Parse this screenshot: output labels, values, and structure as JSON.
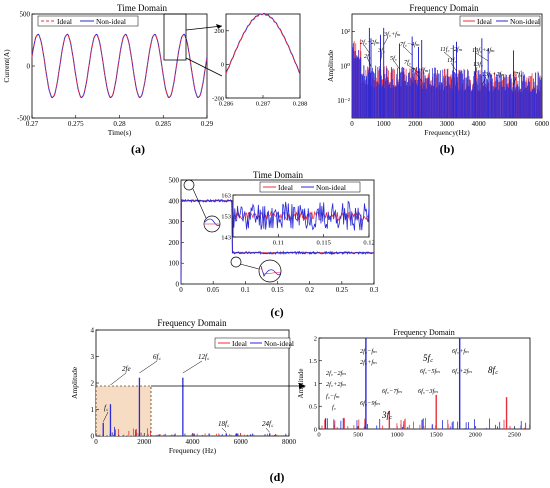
{
  "chart_data": [
    {
      "id": "a",
      "type": "line",
      "panel_label": "(a)",
      "title": "Time Domain",
      "xlabel": "Time(s)",
      "ylabel": "Current(A)",
      "xlim": [
        0.27,
        0.29
      ],
      "ylim": [
        -500,
        500
      ],
      "x_ticks": [
        0.27,
        0.275,
        0.28,
        0.285,
        0.29
      ],
      "x_tick_labels": [
        "0.27",
        "0.275",
        "0.28",
        "0.285",
        "0.29"
      ],
      "y_ticks": [
        -500,
        0,
        500
      ],
      "y_tick_labels": [
        "-500",
        "0",
        "500"
      ],
      "waveform": {
        "amplitude": 300,
        "frequency_hz": 300
      },
      "series": [
        {
          "name": "Ideal",
          "color": "#e8303a",
          "style": "dashed"
        },
        {
          "name": "Non-ideal",
          "color": "#2a2ad8",
          "style": "solid"
        }
      ],
      "legend": "top",
      "inset": {
        "xlim": [
          0.286,
          0.288
        ],
        "ylim": [
          -200,
          300
        ],
        "x_ticks": [
          0.286,
          0.287,
          0.288
        ],
        "x_tick_labels": [
          "0.286",
          "0.287",
          "0.288"
        ],
        "y_ticks": [
          -200,
          0,
          200
        ],
        "y_tick_labels": [
          "-200",
          "0",
          "200"
        ]
      }
    },
    {
      "id": "b",
      "type": "line",
      "panel_label": "(b)",
      "title": "Frequency Domain",
      "xlabel": "Frequency(Hz)",
      "ylabel": "Amplitude",
      "xlim": [
        0,
        6000
      ],
      "x_ticks": [
        0,
        1000,
        2000,
        3000,
        4000,
        5000,
        6000
      ],
      "x_tick_labels": [
        "0",
        "1000",
        "2000",
        "3000",
        "4000",
        "5000",
        "6000"
      ],
      "y_scale": "log",
      "y_ticks": [
        -2,
        0,
        2
      ],
      "y_tick_labels": [
        "10⁻²",
        "10⁰",
        "10²"
      ],
      "series": [
        {
          "name": "Ideal",
          "color": "#e8303a"
        },
        {
          "name": "Non-ideal",
          "color": "#2a2ad8"
        }
      ],
      "legend": "top-right",
      "annotations": [
        "2f꜀−2fₘ",
        "2f꜀",
        "3f꜀",
        "3f꜀+fₘ",
        "5f꜀",
        "7f꜀−4fₘ",
        "7f꜀",
        "7f꜀+fₘ",
        "11f꜀−2fₘ",
        "11f꜀",
        "13f꜀",
        "13f꜀+4fₘ",
        "13f꜀+2fₘ",
        "17f꜀"
      ],
      "peaks_hz": [
        550,
        600,
        900,
        1000,
        1500,
        1900,
        2100,
        2200,
        3200,
        3300,
        3900,
        4300,
        4100,
        5100
      ],
      "peak_log_amplitude": [
        2.2,
        1.6,
        1.8,
        2.2,
        1.3,
        1.7,
        1.1,
        1.5,
        1.2,
        1.4,
        1.1,
        1.0,
        1.6,
        0.9
      ]
    },
    {
      "id": "c",
      "type": "line",
      "panel_label": "(c)",
      "title": "Time Domain",
      "xlim": [
        0,
        0.3
      ],
      "ylim": [
        0,
        500
      ],
      "x_ticks": [
        0,
        0.05,
        0.1,
        0.15,
        0.2,
        0.25,
        0.3
      ],
      "x_tick_labels": [
        "0",
        "0.05",
        "0.1",
        "0.15",
        "0.2",
        "0.25",
        "0.3"
      ],
      "y_ticks": [
        0,
        100,
        200,
        300,
        400,
        500
      ],
      "y_tick_labels": [
        "0",
        "100",
        "200",
        "300",
        "400",
        "500"
      ],
      "step": {
        "t_step": 0.08,
        "level_before": 400,
        "level_after": 150
      },
      "series": [
        {
          "name": "Ideal",
          "color": "#e8303a"
        },
        {
          "name": "Non-ideal",
          "color": "#2a2ad8"
        }
      ],
      "legend": "top",
      "inset": {
        "xlim": [
          0.105,
          0.12
        ],
        "ylim": [
          143,
          163
        ],
        "x_ticks": [
          0.11,
          0.115,
          0.12
        ],
        "x_tick_labels": [
          "0.11",
          "0.115",
          "0.12"
        ],
        "y_ticks": [
          143,
          153,
          163
        ],
        "y_tick_labels": [
          "143",
          "153",
          "163"
        ]
      }
    },
    {
      "id": "d",
      "type": "bar",
      "panel_label": "(d)",
      "title": "Frequency Domain",
      "xlabel": "Frequency (Hz)",
      "ylabel": "Amplitude",
      "xlim": [
        0,
        8000
      ],
      "ylim": [
        0,
        4
      ],
      "x_ticks": [
        0,
        2000,
        4000,
        6000,
        8000
      ],
      "x_tick_labels": [
        "0",
        "2000",
        "4000",
        "6000",
        "8000"
      ],
      "y_ticks": [
        0,
        1,
        2,
        3,
        4
      ],
      "y_tick_labels": [
        "0",
        "1",
        "2",
        "3",
        "4"
      ],
      "series": [
        {
          "name": "Ideal",
          "color": "#e8303a"
        },
        {
          "name": "Non-ideal",
          "color": "#2a2ad8"
        }
      ],
      "legend": "top-right",
      "annotations": [
        "f꜀",
        "2fe",
        "6f꜀",
        "12f꜀",
        "18f꜀",
        "24f꜀"
      ],
      "peaks_hz": [
        300,
        600,
        1800,
        3600,
        5400,
        7200
      ],
      "peak_amplitudes": [
        0.5,
        1.2,
        2.2,
        2.2,
        0.1,
        0.1
      ],
      "inset": {
        "title": "Frequency Domain",
        "ylabel": "Amplitude",
        "xlim": [
          0,
          2700
        ],
        "ylim": [
          0,
          2
        ],
        "x_ticks": [
          0,
          500,
          1000,
          1500,
          2000,
          2500
        ],
        "x_tick_labels": [
          "0",
          "500",
          "1000",
          "1500",
          "2000",
          "2500"
        ],
        "y_ticks": [
          0,
          0.5,
          1,
          1.5,
          2
        ],
        "y_tick_labels": [
          "0",
          "0.5",
          "1",
          "1.5",
          "2"
        ],
        "annotations": [
          "2f꜀−fₘ",
          "2f꜀+fₘ",
          "2f꜀−2fₘ",
          "2f꜀+2fₘ",
          "f꜀−fₘ",
          "f꜀",
          "6f꜀−9fₘ",
          "6f꜀−7fₘ",
          "6f꜀−5fₘ",
          "6f꜀−3fₘ",
          "5f꜀",
          "3f꜀",
          "6f꜀+fₘ",
          "6f꜀+2fₘ",
          "8f꜀"
        ]
      }
    }
  ]
}
